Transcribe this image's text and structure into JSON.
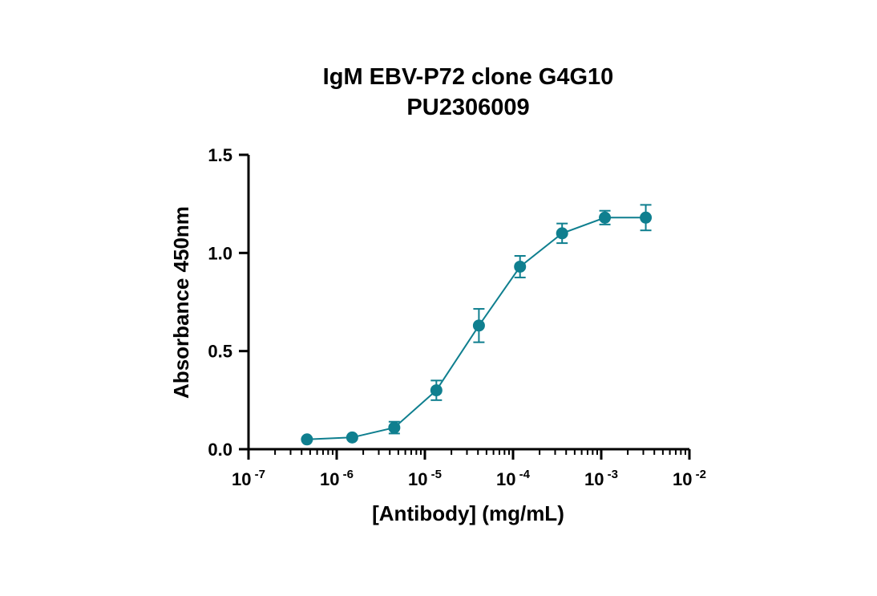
{
  "chart_data": {
    "type": "line",
    "title": "IgM EBV-P72 clone G4G10",
    "subtitle": "PU2306009",
    "xlabel": "[Antibody] (mg/mL)",
    "ylabel": "Absorbance 450nm",
    "xscale": "log",
    "xlim": [
      1e-07,
      0.01
    ],
    "ylim": [
      0,
      1.5
    ],
    "yticks": [
      "0.0",
      "0.5",
      "1.0",
      "1.5"
    ],
    "xticks": [
      {
        "base": "10",
        "exp": "-7",
        "value": 1e-07
      },
      {
        "base": "10",
        "exp": "-6",
        "value": 1e-06
      },
      {
        "base": "10",
        "exp": "-5",
        "value": 1e-05
      },
      {
        "base": "10",
        "exp": "-4",
        "value": 0.0001
      },
      {
        "base": "10",
        "exp": "-3",
        "value": 0.001
      },
      {
        "base": "10",
        "exp": "-2",
        "value": 0.01
      }
    ],
    "grid": false,
    "color": "#0f7f8f",
    "series": [
      {
        "x": [
          4.6e-07,
          1.5e-06,
          4.5e-06,
          1.35e-05,
          4.1e-05,
          0.00012,
          0.00036,
          0.0011,
          0.0032
        ],
        "y": [
          0.05,
          0.06,
          0.11,
          0.3,
          0.63,
          0.93,
          1.1,
          1.18,
          1.18
        ],
        "err": [
          0.0,
          0.0,
          0.03,
          0.05,
          0.085,
          0.055,
          0.05,
          0.035,
          0.065
        ]
      }
    ]
  }
}
